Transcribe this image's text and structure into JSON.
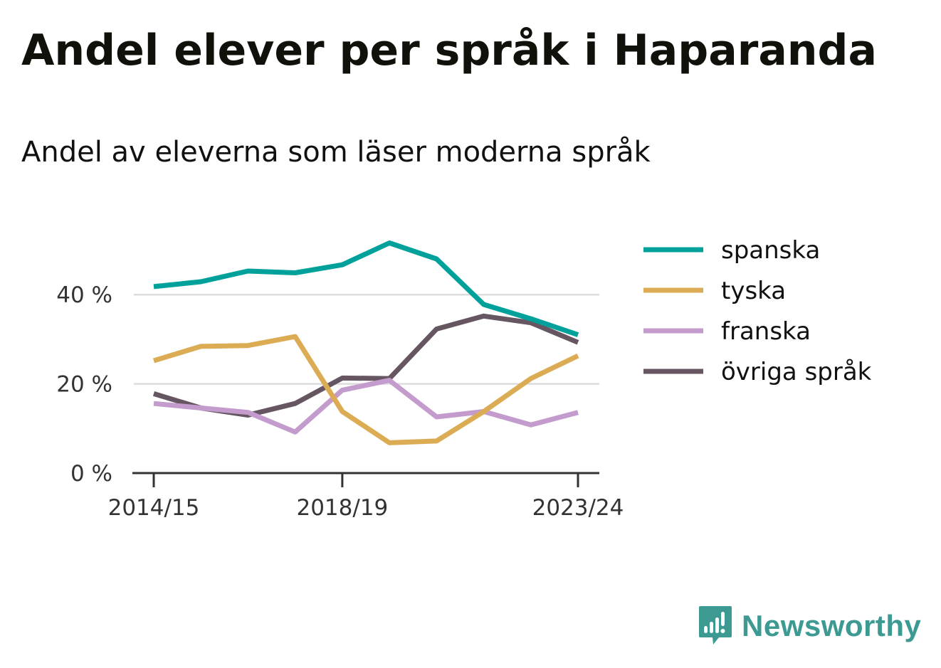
{
  "title": "Andel elever per språk i Haparanda",
  "subtitle": "Andel av eleverna som läser moderna språk",
  "brand": {
    "name": "Newsworthy",
    "icon": "newsworthy-logo-icon",
    "color": "#3c9a93"
  },
  "chart_data": {
    "type": "line",
    "x": [
      "2014/15",
      "2015/16",
      "2016/17",
      "2017/18",
      "2018/19",
      "2019/20",
      "2020/21",
      "2021/22",
      "2022/23",
      "2023/24"
    ],
    "x_tick_labels": [
      "2014/15",
      "2018/19",
      "2023/24"
    ],
    "y_ticks": [
      0,
      20,
      40
    ],
    "y_tick_labels": [
      "0 %",
      "20 %",
      "40 %"
    ],
    "ylim": [
      0,
      52
    ],
    "grid": true,
    "legend_position": "right",
    "series": [
      {
        "name": "spanska",
        "color": "#00a19a",
        "values": [
          41.8,
          42.9,
          45.3,
          44.9,
          46.7,
          51.6,
          48.0,
          37.8,
          34.6,
          31.0
        ]
      },
      {
        "name": "tyska",
        "color": "#dcac55",
        "values": [
          25.2,
          28.4,
          28.6,
          30.6,
          13.8,
          6.8,
          7.2,
          13.8,
          21.2,
          26.3
        ]
      },
      {
        "name": "franska",
        "color": "#c49bcd",
        "values": [
          15.6,
          14.6,
          13.6,
          9.2,
          18.6,
          20.8,
          12.6,
          13.8,
          10.8,
          13.6
        ]
      },
      {
        "name": "övriga språk",
        "color": "#665661",
        "values": [
          17.8,
          14.6,
          13.0,
          15.6,
          21.3,
          21.2,
          32.3,
          35.2,
          33.7,
          29.3
        ]
      }
    ]
  }
}
